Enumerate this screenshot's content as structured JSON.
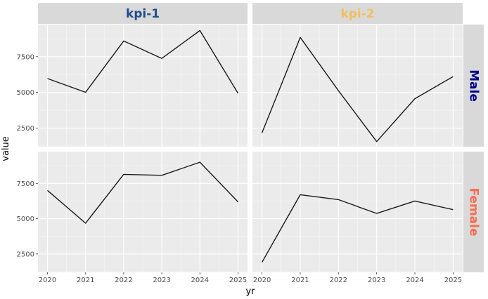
{
  "chart_data": {
    "type": "line",
    "layout": "facet-grid",
    "xlabel": "yr",
    "ylabel": "value",
    "x": [
      2020,
      2021,
      2022,
      2023,
      2024,
      2025
    ],
    "x_ticks": [
      "2020",
      "2021",
      "2022",
      "2023",
      "2024",
      "2025"
    ],
    "xlim": [
      2019.75,
      2025.25
    ],
    "y_ticks": [
      2500,
      5000,
      7500
    ],
    "y_tick_labels": [
      "2500",
      "5000",
      "7500"
    ],
    "ylim": [
      1200,
      9750
    ],
    "grid": true,
    "columns": [
      {
        "label": "kpi-1",
        "color": "#1f4e8c"
      },
      {
        "label": "kpi-2",
        "color": "#f0c060"
      }
    ],
    "rows": [
      {
        "label": "Male",
        "color": "#00008b"
      },
      {
        "label": "Female",
        "color": "#fa6a50"
      }
    ],
    "panels": [
      {
        "column": "kpi-1",
        "row": "Male",
        "values": [
          5970,
          5010,
          8600,
          7380,
          9330,
          4940
        ]
      },
      {
        "column": "kpi-2",
        "row": "Male",
        "values": [
          2170,
          8850,
          5120,
          1560,
          4560,
          6110
        ]
      },
      {
        "column": "kpi-1",
        "row": "Female",
        "values": [
          7000,
          4680,
          8140,
          8070,
          9000,
          6190
        ]
      },
      {
        "column": "kpi-2",
        "row": "Female",
        "values": [
          1910,
          6700,
          6350,
          5370,
          6250,
          5640
        ]
      }
    ]
  }
}
